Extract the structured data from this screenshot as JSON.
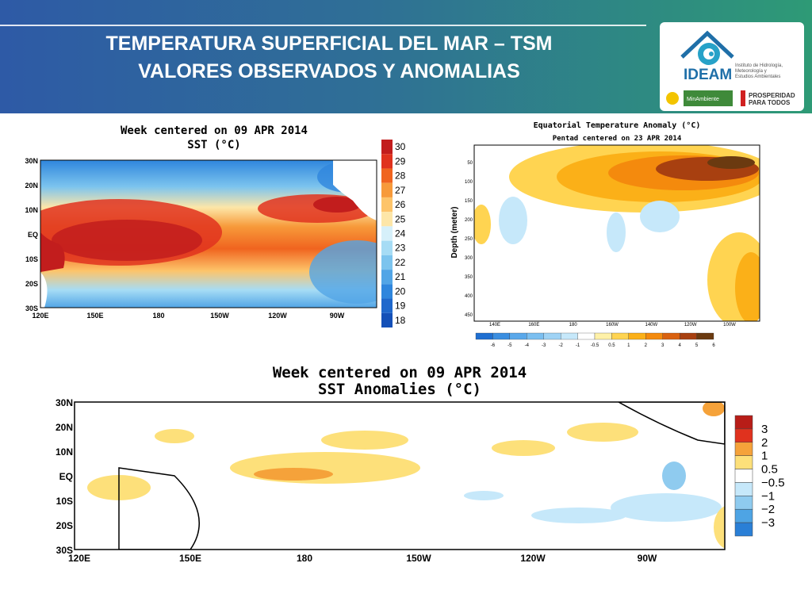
{
  "header": {
    "title_line1": "TEMPERATURA SUPERFICIAL DEL MAR – TSM",
    "title_line2": "VALORES OBSERVADOS Y ANOMALIAS"
  },
  "logo": {
    "name": "IDEAM",
    "subtitle_lines": [
      "Instituto de Hidrología,",
      "Meteorología y",
      "Estudios Ambientales"
    ],
    "ministry": "MinAmbiente",
    "slogan_lines": [
      "PROSPERIDAD",
      "PARA TODOS"
    ]
  },
  "chart_data": [
    {
      "type": "heatmap",
      "title": "Week centered on 09 APR 2014",
      "subtitle": "SST (°C)",
      "x_ticks": [
        "120E",
        "150E",
        "180",
        "150W",
        "120W",
        "90W"
      ],
      "y_ticks": [
        "30N",
        "20N",
        "10N",
        "EQ",
        "10S",
        "20S",
        "30S"
      ],
      "colorbar": {
        "labels": [
          "30",
          "29",
          "28",
          "27",
          "26",
          "25",
          "24",
          "23",
          "22",
          "21",
          "20",
          "19",
          "18"
        ],
        "colors": [
          "#c21d1d",
          "#e0321e",
          "#f0641f",
          "#f79a3a",
          "#fdc46a",
          "#fde6a8",
          "#d6f0fa",
          "#a6dcf5",
          "#7cc4ee",
          "#52a5e6",
          "#2f86dd",
          "#1f68cc",
          "#1450b8"
        ]
      }
    },
    {
      "type": "heatmap",
      "title": "Equatorial Temperature Anomaly (°C)",
      "subtitle": "Pentad centered on 23 APR 2014",
      "ylabel": "Depth (meter)",
      "y_ticks": [
        "50",
        "100",
        "150",
        "200",
        "250",
        "300",
        "350",
        "400",
        "450"
      ],
      "x_ticks": [
        "140E",
        "160E",
        "180",
        "160W",
        "140W",
        "120W",
        "100W"
      ],
      "colorbar": {
        "labels": [
          "-6",
          "-5",
          "-4",
          "-3",
          "-2",
          "-1",
          "-0.5",
          "0.5",
          "1",
          "2",
          "3",
          "4",
          "5",
          "6"
        ],
        "colors": [
          "#1f6fd1",
          "#3b8ee0",
          "#5aa8ea",
          "#7bbff0",
          "#9fd3f5",
          "#c6e8fa",
          "#ffffff",
          "#fff1a8",
          "#ffd451",
          "#fbb018",
          "#f48a0d",
          "#d9610f",
          "#a84010",
          "#6b3a10"
        ]
      }
    },
    {
      "type": "heatmap",
      "title": "Week centered on 09 APR 2014",
      "subtitle": "SST Anomalies (°C)",
      "x_ticks": [
        "120E",
        "150E",
        "180",
        "150W",
        "120W",
        "90W"
      ],
      "y_ticks": [
        "30N",
        "20N",
        "10N",
        "EQ",
        "10S",
        "20S",
        "30S"
      ],
      "colorbar": {
        "labels": [
          "3",
          "2",
          "1",
          "0.5",
          "−0.5",
          "−1",
          "−2",
          "−3"
        ],
        "colors": [
          "#b81d18",
          "#e0321e",
          "#f5a23a",
          "#fde07a",
          "#ffffff",
          "#c6e8fa",
          "#8fcbef",
          "#4ea4e4",
          "#2a7fd6"
        ]
      }
    }
  ]
}
